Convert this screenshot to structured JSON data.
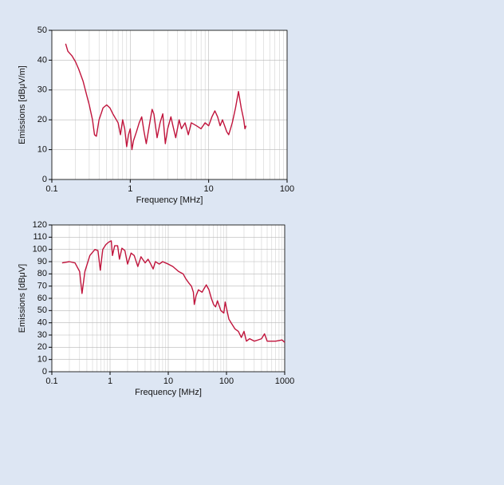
{
  "chart_data": [
    {
      "type": "line",
      "x_label": "Frequency [MHz]",
      "y_label": "Emissions [dBμV/m]",
      "xscale": "log",
      "grid": true,
      "xlim": [
        0.1,
        100
      ],
      "xticks": [
        0.1,
        1,
        10,
        100
      ],
      "ylim": [
        0,
        50
      ],
      "yticks": [
        0,
        10,
        20,
        30,
        40,
        50
      ],
      "series": [
        {
          "color": "#c0143c",
          "x": [
            0.15,
            0.16,
            0.18,
            0.2,
            0.22,
            0.25,
            0.28,
            0.3,
            0.33,
            0.35,
            0.37,
            0.4,
            0.45,
            0.5,
            0.55,
            0.6,
            0.7,
            0.75,
            0.8,
            0.85,
            0.9,
            0.95,
            1.0,
            1.05,
            1.1,
            1.2,
            1.3,
            1.4,
            1.5,
            1.6,
            1.8,
            1.9,
            2.0,
            2.2,
            2.4,
            2.6,
            2.8,
            3.0,
            3.3,
            3.5,
            3.8,
            4.2,
            4.5,
            5,
            5.5,
            6,
            7,
            8,
            9,
            10,
            11,
            12,
            13,
            14,
            15,
            17,
            18,
            19,
            20,
            22,
            24,
            26,
            28,
            29,
            30
          ],
          "values": [
            45.5,
            43,
            41.5,
            39.5,
            37,
            33,
            28,
            25,
            20,
            15,
            14.5,
            20,
            24,
            25,
            24,
            22,
            19,
            15,
            20,
            17,
            11,
            15,
            17,
            10,
            13,
            16,
            19,
            21,
            16,
            12,
            20,
            23.5,
            22,
            14,
            19,
            22,
            12,
            17,
            21,
            18,
            14,
            20,
            17,
            19,
            15,
            19,
            18,
            17,
            19,
            18,
            21,
            23,
            21,
            18,
            20,
            16,
            15,
            17,
            19,
            24,
            29.5,
            24,
            20,
            17,
            18
          ]
        }
      ]
    },
    {
      "type": "line",
      "x_label": "Frequency [MHz]",
      "y_label": "Emissions [dBμV]",
      "xscale": "log",
      "grid": true,
      "xlim": [
        0.1,
        1000
      ],
      "xticks": [
        0.1,
        1,
        10,
        100,
        1000
      ],
      "ylim": [
        0,
        120
      ],
      "yticks": [
        0,
        10,
        20,
        30,
        40,
        50,
        60,
        70,
        80,
        90,
        100,
        110,
        120
      ],
      "series": [
        {
          "color": "#c0143c",
          "x": [
            0.15,
            0.2,
            0.25,
            0.3,
            0.33,
            0.37,
            0.45,
            0.55,
            0.62,
            0.68,
            0.75,
            0.85,
            0.95,
            1.05,
            1.1,
            1.2,
            1.35,
            1.45,
            1.6,
            1.8,
            2,
            2.3,
            2.6,
            3,
            3.4,
            4,
            4.5,
            5,
            5.5,
            6,
            7,
            8,
            10,
            12,
            15,
            18,
            20,
            23,
            25,
            27,
            28,
            30,
            33,
            38,
            45,
            50,
            55,
            60,
            65,
            70,
            80,
            90,
            95,
            100,
            110,
            120,
            140,
            160,
            180,
            200,
            220,
            250,
            300,
            350,
            400,
            450,
            500,
            700,
            900,
            1000
          ],
          "values": [
            89,
            90,
            89,
            82,
            64,
            82,
            95,
            100,
            99,
            83,
            100,
            104,
            106,
            107,
            95,
            103,
            103,
            92,
            101,
            99,
            88,
            97,
            95,
            86,
            94,
            89,
            92,
            88,
            84,
            90,
            88,
            90,
            88,
            86,
            82,
            80,
            76,
            72,
            70,
            65,
            55,
            62,
            67,
            65,
            71,
            67,
            60,
            55,
            53,
            58,
            50,
            48,
            57,
            52,
            43,
            40,
            35,
            33,
            28,
            33,
            25,
            27,
            25,
            26,
            27,
            31,
            25,
            25,
            26,
            24
          ]
        }
      ]
    }
  ]
}
